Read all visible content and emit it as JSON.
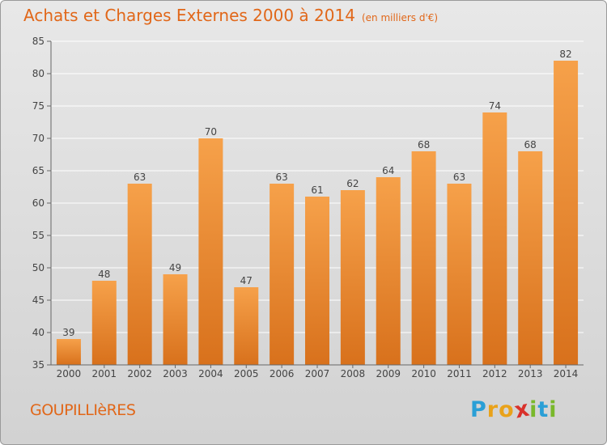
{
  "header": {
    "title": "Achats et Charges Externes 2000 à 2014",
    "unit": "(en milliers d'€)"
  },
  "footer": {
    "place": "GOUPILLIèRES",
    "logo": "Proxiti",
    "logo_letters": [
      {
        "ch": "P",
        "color": "#2a9fd6"
      },
      {
        "ch": "r",
        "color": "#e9a21a"
      },
      {
        "ch": "o",
        "color": "#e9a21a"
      },
      {
        "ch": "x",
        "color": "#d9312b"
      },
      {
        "ch": "i",
        "color": "#79b82b"
      },
      {
        "ch": "t",
        "color": "#2a9fd6"
      },
      {
        "ch": "i",
        "color": "#79b82b"
      }
    ]
  },
  "colors": {
    "accent": "#e16719",
    "bar_top": "#f6a14a",
    "bar_bottom": "#d8711c",
    "grid": "#ffffff"
  },
  "chart_data": {
    "type": "bar",
    "title": "Achats et Charges Externes 2000 à 2014",
    "subtitle": "(en milliers d'€)",
    "xlabel": "",
    "ylabel": "",
    "categories": [
      "2000",
      "2001",
      "2002",
      "2003",
      "2004",
      "2005",
      "2006",
      "2007",
      "2008",
      "2009",
      "2010",
      "2011",
      "2012",
      "2013",
      "2014"
    ],
    "values": [
      39,
      48,
      63,
      49,
      70,
      47,
      63,
      61,
      62,
      64,
      68,
      63,
      74,
      68,
      82
    ],
    "ylim": [
      35,
      85
    ],
    "yticks": [
      35,
      40,
      45,
      50,
      55,
      60,
      65,
      70,
      75,
      80,
      85
    ],
    "grid": true,
    "data_labels": true
  }
}
